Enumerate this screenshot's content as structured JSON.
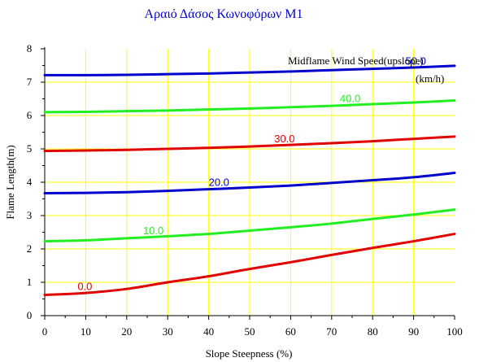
{
  "chart_data": {
    "type": "line",
    "title": "Αραιό Δάσος Κωνοφόρων M1",
    "xlabel": "Slope Steepness (%)",
    "ylabel": "Flame Length(m)",
    "xlim": [
      0,
      100
    ],
    "ylim": [
      0,
      8
    ],
    "xticks": [
      "0",
      "10",
      "20",
      "30",
      "40",
      "50",
      "60",
      "70",
      "80",
      "90",
      "100"
    ],
    "yticks": [
      "0",
      "1",
      "2",
      "3",
      "4",
      "5",
      "6",
      "7",
      "8"
    ],
    "grid": true,
    "grid_color": "#ffff00",
    "legend_title_line1": "Midflame Wind Speed(upslope)",
    "legend_title_line2": "(km/h)",
    "x": [
      0,
      10,
      20,
      30,
      40,
      50,
      60,
      70,
      80,
      90,
      100
    ],
    "series": [
      {
        "name": "0.0",
        "color": "#e00000",
        "label_at": 8,
        "values": [
          0.62,
          0.68,
          0.8,
          1.0,
          1.18,
          1.4,
          1.6,
          1.82,
          2.03,
          2.23,
          2.45
        ]
      },
      {
        "name": "10.0",
        "color": "#22ee22",
        "label_at": 24,
        "values": [
          2.23,
          2.26,
          2.32,
          2.38,
          2.45,
          2.55,
          2.65,
          2.76,
          2.9,
          3.03,
          3.18
        ]
      },
      {
        "name": "20.0",
        "color": "#0000cc",
        "label_at": 40,
        "values": [
          3.67,
          3.68,
          3.7,
          3.74,
          3.79,
          3.84,
          3.9,
          3.98,
          4.06,
          4.15,
          4.28
        ]
      },
      {
        "name": "30.0",
        "color": "#e00000",
        "label_at": 56,
        "values": [
          4.94,
          4.95,
          4.97,
          5.0,
          5.03,
          5.07,
          5.12,
          5.17,
          5.23,
          5.3,
          5.37
        ]
      },
      {
        "name": "40.0",
        "color": "#22ee22",
        "label_at": 72,
        "values": [
          6.1,
          6.11,
          6.13,
          6.15,
          6.18,
          6.21,
          6.25,
          6.29,
          6.34,
          6.39,
          6.45
        ]
      },
      {
        "name": "50.0",
        "color": "#0000cc",
        "label_at": 88,
        "values": [
          7.21,
          7.21,
          7.22,
          7.24,
          7.26,
          7.29,
          7.32,
          7.36,
          7.4,
          7.44,
          7.49
        ]
      }
    ]
  }
}
